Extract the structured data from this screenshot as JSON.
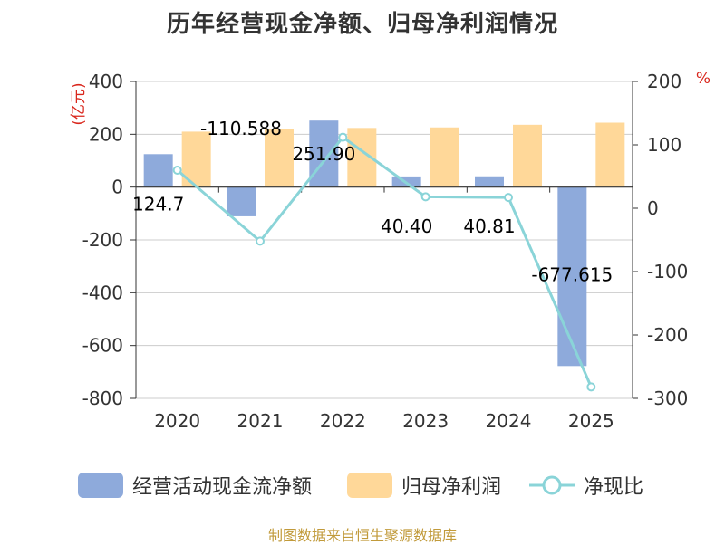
{
  "title": "历年经营现金净额、归母净利润情况",
  "source": "制图数据来自恒生聚源数据库",
  "left_axis_unit": "(亿元)",
  "right_axis_unit": "%",
  "colors": {
    "cash_flow": "#8eaadb",
    "net_profit": "#ffd899",
    "ratio_line": "#8ad4d8",
    "unit_text": "#d9261c",
    "axis_text": "#333333",
    "grid": "#cccccc"
  },
  "legend": {
    "cash_flow": "经营活动现金流净额",
    "net_profit": "归母净利润",
    "ratio": "净现比"
  },
  "chart_data": {
    "type": "bar",
    "categories": [
      "2020",
      "2021",
      "2022",
      "2023",
      "2024",
      "2025"
    ],
    "series": [
      {
        "name": "经营活动现金流净额",
        "axis": "left",
        "values": [
          124.7,
          -110.588,
          251.9,
          40.4,
          40.81,
          -677.615
        ],
        "labels": [
          "124.7",
          "-110.588",
          "251.90",
          "40.40",
          "40.81",
          "-677.615"
        ]
      },
      {
        "name": "归母净利润",
        "axis": "left",
        "values": [
          210,
          220,
          224,
          226,
          236,
          244
        ]
      },
      {
        "name": "净现比",
        "type": "line",
        "axis": "right",
        "values": [
          60,
          -52,
          112,
          18,
          17,
          -282
        ]
      }
    ],
    "y_left": {
      "min": -800,
      "max": 400,
      "ticks": [
        400,
        200,
        0,
        -200,
        -400,
        -600,
        -800
      ]
    },
    "y_right": {
      "min": -300,
      "max": 200,
      "ticks": [
        200,
        100,
        0,
        -100,
        -200,
        -300
      ]
    },
    "legend_position": "bottom",
    "grid": true
  }
}
